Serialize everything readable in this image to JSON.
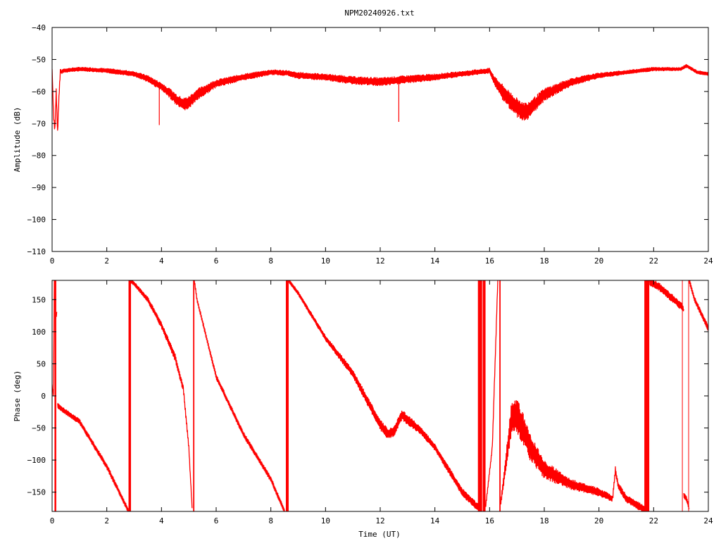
{
  "chart_data": [
    {
      "type": "line",
      "title": "NPM20240926.txt",
      "xlabel": "",
      "ylabel": "Amplitude (dB)",
      "xlim": [
        0,
        24
      ],
      "ylim": [
        -110,
        -40
      ],
      "xticks": [
        0,
        2,
        4,
        6,
        8,
        10,
        12,
        14,
        16,
        18,
        20,
        22,
        24
      ],
      "yticks": [
        -110,
        -100,
        -90,
        -80,
        -70,
        -60,
        -50,
        -40
      ],
      "xtick_labels": [
        "0",
        "2",
        "4",
        "6",
        "8",
        "10",
        "12",
        "14",
        "16",
        "18",
        "20",
        "22",
        "24"
      ],
      "ytick_labels": [
        "−110",
        "−100",
        "−90",
        "−80",
        "−70",
        "−60",
        "−50",
        "−40"
      ],
      "grid": false,
      "color": "#ff0000",
      "series": [
        {
          "x": [
            0,
            0.05,
            0.1,
            0.15,
            0.2,
            0.25,
            0.3,
            0.35,
            0.4,
            1,
            2,
            3,
            3.5,
            4,
            4.3,
            4.6,
            4.8,
            5,
            5.3,
            6,
            7,
            8,
            8.6,
            9,
            10,
            11,
            12,
            13,
            14,
            15,
            15.5,
            16,
            16.2,
            16.5,
            17,
            17.3,
            17.6,
            18,
            19,
            20,
            21,
            22,
            22.7,
            23,
            23.2,
            23.6,
            24
          ],
          "y": [
            -53,
            -67,
            -72,
            -60,
            -73,
            -62,
            -53.5,
            -54,
            -53.5,
            -53,
            -53.5,
            -54.5,
            -56,
            -58.5,
            -60.5,
            -63,
            -64,
            -63.5,
            -61,
            -57.5,
            -55.5,
            -54,
            -54.2,
            -55,
            -55.5,
            -56.5,
            -57,
            -56.2,
            -55.5,
            -54.5,
            -54,
            -53.5,
            -57,
            -60.5,
            -65,
            -66.5,
            -64.5,
            -61,
            -57,
            -55,
            -54,
            -53,
            -53,
            -53,
            -52,
            -54,
            -54.5
          ],
          "band": [
            0,
            1,
            1,
            1,
            1,
            1,
            0.6,
            0.6,
            0.6,
            0.6,
            0.7,
            0.8,
            1,
            1.2,
            1.5,
            1.8,
            2,
            2,
            1.8,
            1.2,
            1,
            0.8,
            0.8,
            1,
            1,
            1.2,
            1.3,
            1.2,
            1,
            0.8,
            0.8,
            0.8,
            1.5,
            2.5,
            3,
            3,
            2.5,
            2,
            1.2,
            0.8,
            0.6,
            0.6,
            0.5,
            0.5,
            0.5,
            0.5,
            0.5
          ]
        }
      ],
      "spikes": [
        {
          "x": 3.92,
          "y1": -59,
          "y2": -70.5
        },
        {
          "x": 12.68,
          "y1": -57,
          "y2": -69.5
        }
      ]
    },
    {
      "type": "line",
      "title": "",
      "xlabel": "Time (UT)",
      "ylabel": "Phase (deg)",
      "xlim": [
        0,
        24
      ],
      "ylim": [
        -180,
        180
      ],
      "xticks": [
        0,
        2,
        4,
        6,
        8,
        10,
        12,
        14,
        16,
        18,
        20,
        22,
        24
      ],
      "yticks": [
        -150,
        -100,
        -50,
        0,
        50,
        100,
        150
      ],
      "xtick_labels": [
        "0",
        "2",
        "4",
        "6",
        "8",
        "10",
        "12",
        "14",
        "16",
        "18",
        "20",
        "22",
        "24"
      ],
      "ytick_labels": [
        "−150",
        "−100",
        "−50",
        "0",
        "50",
        "100",
        "150"
      ],
      "grid": false,
      "color": "#ff0000",
      "segments": [
        {
          "x": [
            0,
            0.05,
            0.08,
            0.12,
            0.18
          ],
          "y": [
            15,
            0,
            178,
            120,
            130
          ],
          "band": [
            3,
            3,
            3,
            3,
            3
          ]
        },
        {
          "x": [
            0.2,
            0.4,
            1,
            2,
            2.8
          ],
          "y": [
            -15,
            -22,
            -40,
            -110,
            -180
          ],
          "band": [
            4,
            4,
            4,
            4,
            4
          ]
        },
        {
          "x": [
            2.85,
            3,
            3.5,
            4,
            4.5,
            4.8,
            5,
            5.12
          ],
          "y": [
            180,
            175,
            150,
            110,
            60,
            10,
            -80,
            -175
          ],
          "band": [
            3,
            3,
            4,
            5,
            6,
            5,
            4,
            3
          ]
        },
        {
          "x": [
            5.2,
            5.3,
            6,
            7,
            8,
            8.5
          ],
          "y": [
            180,
            150,
            30,
            -60,
            -130,
            -180
          ],
          "band": [
            3,
            3,
            4,
            4,
            4,
            4
          ]
        },
        {
          "x": [
            8.65,
            9,
            10,
            11,
            12,
            12.3,
            12.5,
            12.8,
            13.5,
            14,
            15,
            15.6
          ],
          "y": [
            180,
            160,
            90,
            35,
            -45,
            -60,
            -55,
            -30,
            -55,
            -80,
            -150,
            -175
          ],
          "band": [
            3,
            3,
            4,
            6,
            8,
            8,
            8,
            8,
            6,
            5,
            6,
            6
          ]
        },
        {
          "x": [
            15.85,
            16.1,
            16.3
          ],
          "y": [
            -175,
            -80,
            180
          ],
          "band": [
            3,
            3,
            3
          ]
        },
        {
          "x": [
            16.4,
            16.8,
            17,
            17.5,
            18,
            19,
            20,
            20.5,
            20.6,
            20.7,
            21,
            21.7
          ],
          "y": [
            -170,
            -35,
            -30,
            -80,
            -115,
            -138,
            -150,
            -160,
            -115,
            -140,
            -160,
            -178
          ],
          "band": [
            3,
            25,
            28,
            22,
            14,
            8,
            6,
            5,
            5,
            5,
            6,
            6
          ]
        },
        {
          "x": [
            21.85,
            22.2,
            23,
            23.1
          ],
          "y": [
            178,
            170,
            140,
            135
          ],
          "band": [
            6,
            6,
            6,
            6
          ]
        },
        {
          "x": [
            23.1,
            23.2,
            23.3
          ],
          "y": [
            -155,
            -160,
            -175
          ],
          "band": [
            4,
            4,
            4
          ]
        },
        {
          "x": [
            23.3,
            23.5,
            24
          ],
          "y": [
            180,
            150,
            105
          ],
          "band": [
            4,
            4,
            5
          ]
        }
      ],
      "wraps": [
        {
          "x": 0.12,
          "width": 2.5
        },
        {
          "x": 2.84,
          "width": 3.5
        },
        {
          "x": 5.18,
          "width": 1.8
        },
        {
          "x": 8.6,
          "width": 4
        },
        {
          "x": 15.65,
          "width": 6
        },
        {
          "x": 15.8,
          "width": 4
        },
        {
          "x": 16.38,
          "width": 1.8
        },
        {
          "x": 21.75,
          "width": 7
        },
        {
          "x": 23.05,
          "width": 1
        },
        {
          "x": 23.28,
          "width": 1
        }
      ]
    }
  ]
}
